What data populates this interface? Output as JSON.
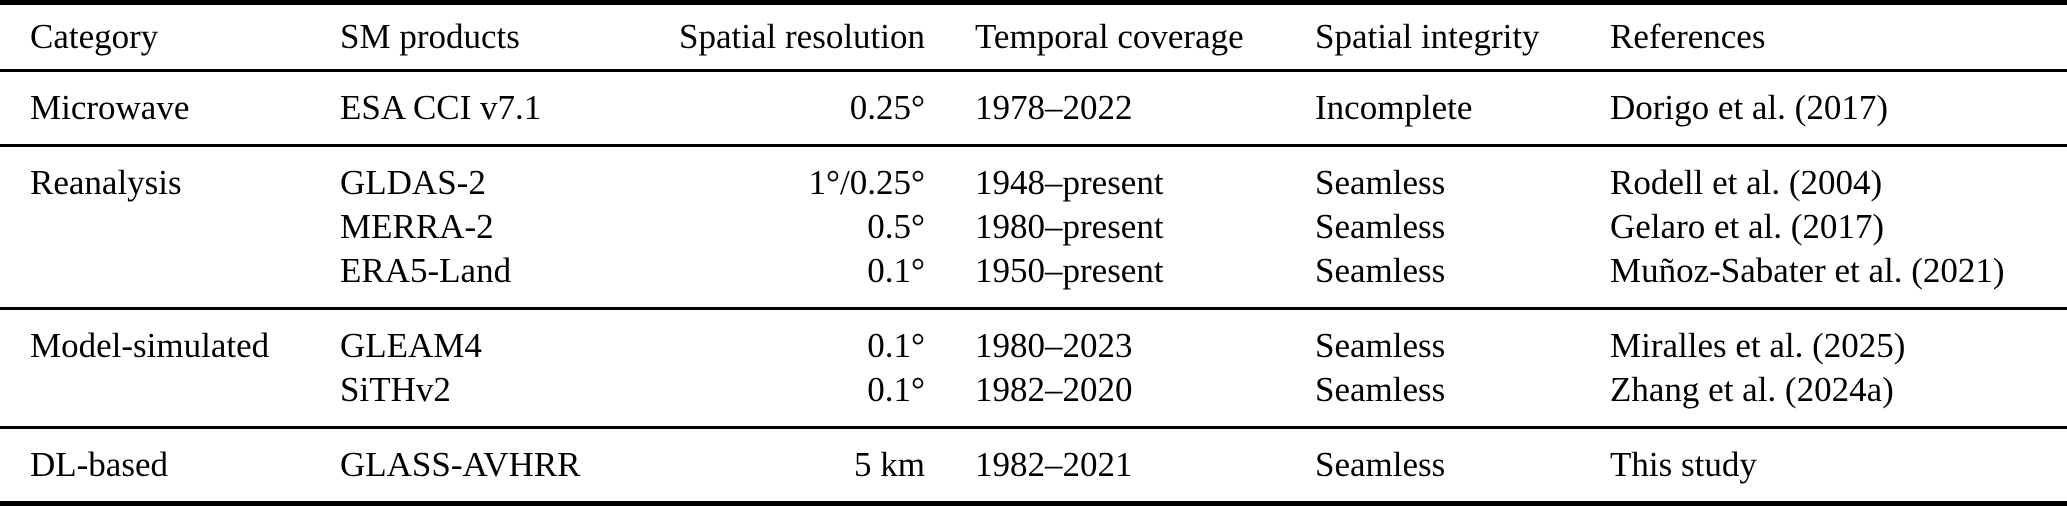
{
  "colors": {
    "background": "#ffffff",
    "text": "#000000",
    "rule": "#000000"
  },
  "table": {
    "columns": [
      {
        "key": "category",
        "label": "Category"
      },
      {
        "key": "product",
        "label": "SM products"
      },
      {
        "key": "resolution",
        "label": "Spatial resolution"
      },
      {
        "key": "coverage",
        "label": "Temporal coverage"
      },
      {
        "key": "integrity",
        "label": "Spatial integrity"
      },
      {
        "key": "references",
        "label": "References"
      }
    ],
    "sections": [
      {
        "category": "Microwave",
        "rows": [
          {
            "product": "ESA CCI v7.1",
            "resolution": "0.25°",
            "coverage": "1978–2022",
            "integrity": "Incomplete",
            "references": "Dorigo et al. (2017)"
          }
        ]
      },
      {
        "category": "Reanalysis",
        "rows": [
          {
            "product": "GLDAS-2",
            "resolution": "1°/0.25°",
            "coverage": "1948–present",
            "integrity": "Seamless",
            "references": "Rodell et al. (2004)"
          },
          {
            "product": "MERRA-2",
            "resolution": "0.5°",
            "coverage": "1980–present",
            "integrity": "Seamless",
            "references": "Gelaro et al. (2017)"
          },
          {
            "product": "ERA5-Land",
            "resolution": "0.1°",
            "coverage": "1950–present",
            "integrity": "Seamless",
            "references": "Muñoz-Sabater et al. (2021)"
          }
        ]
      },
      {
        "category": "Model-simulated",
        "rows": [
          {
            "product": "GLEAM4",
            "resolution": "0.1°",
            "coverage": "1980–2023",
            "integrity": "Seamless",
            "references": "Miralles et al. (2025)"
          },
          {
            "product": "SiTHv2",
            "resolution": "0.1°",
            "coverage": "1982–2020",
            "integrity": "Seamless",
            "references": "Zhang et al. (2024a)"
          }
        ]
      },
      {
        "category": "DL-based",
        "rows": [
          {
            "product": "GLASS-AVHRR",
            "resolution": "5 km",
            "coverage": "1982–2021",
            "integrity": "Seamless",
            "references": "This study"
          }
        ]
      }
    ]
  },
  "chart_data": {
    "type": "table",
    "title": "",
    "columns": [
      "Category",
      "SM products",
      "Spatial resolution",
      "Temporal coverage",
      "Spatial integrity",
      "References"
    ],
    "rows": [
      [
        "Microwave",
        "ESA CCI v7.1",
        "0.25°",
        "1978–2022",
        "Incomplete",
        "Dorigo et al. (2017)"
      ],
      [
        "Reanalysis",
        "GLDAS-2",
        "1°/0.25°",
        "1948–present",
        "Seamless",
        "Rodell et al. (2004)"
      ],
      [
        "",
        "MERRA-2",
        "0.5°",
        "1980–present",
        "Seamless",
        "Gelaro et al. (2017)"
      ],
      [
        "",
        "ERA5-Land",
        "0.1°",
        "1950–present",
        "Seamless",
        "Muñoz-Sabater et al. (2021)"
      ],
      [
        "Model-simulated",
        "GLEAM4",
        "0.1°",
        "1980–2023",
        "Seamless",
        "Miralles et al. (2025)"
      ],
      [
        "",
        "SiTHv2",
        "0.1°",
        "1982–2020",
        "Seamless",
        "Zhang et al. (2024a)"
      ],
      [
        "DL-based",
        "GLASS-AVHRR",
        "5 km",
        "1982–2021",
        "Seamless",
        "This study"
      ]
    ]
  }
}
